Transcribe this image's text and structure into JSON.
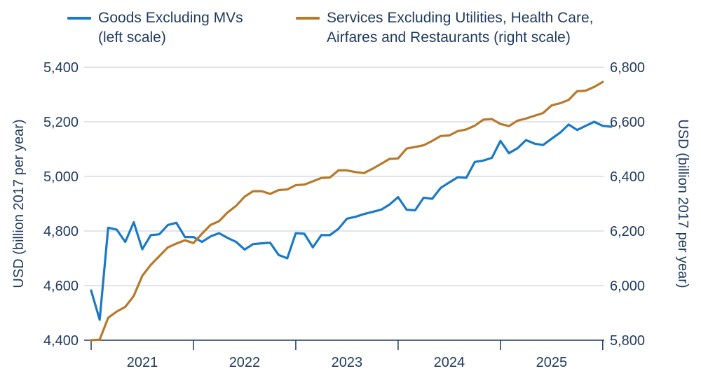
{
  "legend": [
    {
      "label": "Goods Excluding MVs\n(left scale)",
      "color": "#1a7ac6"
    },
    {
      "label": "Services Excluding Utilities, Health Care,\nAirfares and Restaurants (right scale)",
      "color": "#b8792a"
    }
  ],
  "chart_data": {
    "type": "line",
    "title": "",
    "x_ticks": [
      "2021",
      "2022",
      "2023",
      "2024",
      "2025"
    ],
    "left_axis": {
      "label": "USD (billion 2017 per year)",
      "ylim": [
        4400,
        5400
      ],
      "ticks": [
        4400,
        4600,
        4800,
        5000,
        5200,
        5400
      ],
      "tick_labels": [
        "4,400",
        "4,600",
        "4,800",
        "5,000",
        "5,200",
        "5,400"
      ]
    },
    "right_axis": {
      "label": "USD (billion 2017 per year)",
      "ylim": [
        5800,
        6800
      ],
      "ticks": [
        5800,
        6000,
        6200,
        6400,
        6600,
        6800
      ],
      "tick_labels": [
        "5,800",
        "6,000",
        "6,200",
        "6,400",
        "6,600",
        "6,800"
      ]
    },
    "x_start": "2020-12",
    "x_step": "month",
    "series": [
      {
        "name": "Goods Excluding MVs (left scale)",
        "axis": "left",
        "color": "#1a7ac6",
        "values": [
          4582,
          4475,
          4812,
          4805,
          4760,
          4832,
          4733,
          4785,
          4788,
          4822,
          4830,
          4778,
          4778,
          4760,
          4780,
          4792,
          4775,
          4760,
          4732,
          4752,
          4755,
          4757,
          4712,
          4700,
          4792,
          4790,
          4740,
          4785,
          4785,
          4808,
          4845,
          4852,
          4862,
          4870,
          4878,
          4897,
          4924,
          4878,
          4876,
          4922,
          4918,
          4958,
          4978,
          4997,
          4995,
          5053,
          5058,
          5068,
          5130,
          5085,
          5103,
          5133,
          5120,
          5115,
          5138,
          5160,
          5190,
          5170,
          5185,
          5200,
          5185,
          5182
        ]
      },
      {
        "name": "Services Excluding Utilities, Health Care, Airfares and Restaurants (right scale)",
        "axis": "right",
        "color": "#b8792a",
        "values": [
          5800,
          5802,
          5882,
          5905,
          5922,
          5962,
          6036,
          6076,
          6108,
          6140,
          6154,
          6166,
          6156,
          6190,
          6222,
          6236,
          6268,
          6292,
          6326,
          6346,
          6346,
          6336,
          6350,
          6352,
          6368,
          6370,
          6382,
          6394,
          6396,
          6422,
          6422,
          6416,
          6412,
          6428,
          6446,
          6464,
          6466,
          6502,
          6508,
          6514,
          6530,
          6548,
          6550,
          6566,
          6572,
          6586,
          6608,
          6610,
          6592,
          6584,
          6604,
          6612,
          6622,
          6632,
          6660,
          6668,
          6680,
          6712,
          6714,
          6728,
          6746
        ]
      }
    ]
  }
}
